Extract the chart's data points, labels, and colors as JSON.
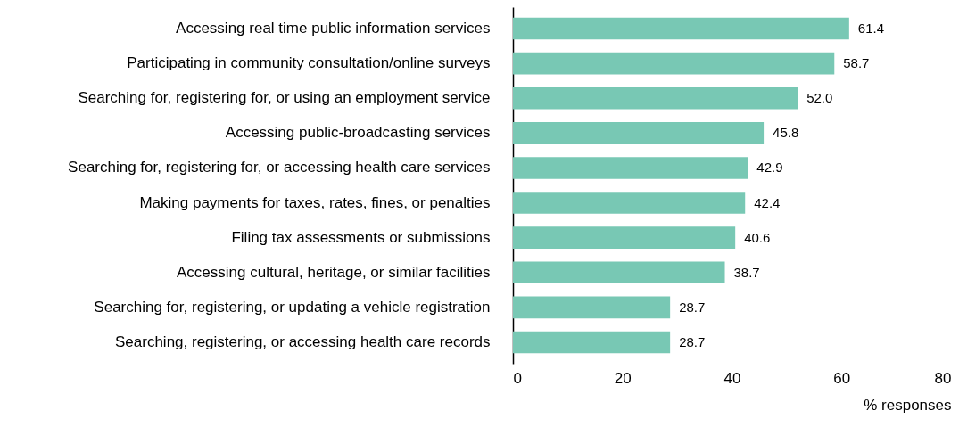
{
  "chart_data": {
    "type": "bar",
    "orientation": "horizontal",
    "xlabel": "% responses",
    "categories": [
      "Accessing real time public information services",
      "Participating in community consultation/online surveys",
      "Searching for, registering for, or using an employment service",
      "Accessing public-broadcasting services",
      "Searching for, registering for, or accessing health care services",
      "Making payments for taxes, rates, fines, or penalties",
      "Filing tax assessments or submissions",
      "Accessing cultural, heritage, or similar facilities",
      "Searching for, registering, or updating a vehicle registration",
      "Searching, registering, or accessing health care records"
    ],
    "values": [
      61.4,
      58.7,
      52.0,
      45.8,
      42.9,
      42.4,
      40.6,
      38.7,
      28.7,
      28.7
    ],
    "value_labels": [
      "61.4",
      "58.7",
      "52.0",
      "45.8",
      "42.9",
      "42.4",
      "40.6",
      "38.7",
      "28.7",
      "28.7"
    ],
    "color": "#78c8b4",
    "xlim": [
      0,
      80
    ],
    "xticks": [
      0,
      20,
      40,
      60,
      80
    ]
  }
}
